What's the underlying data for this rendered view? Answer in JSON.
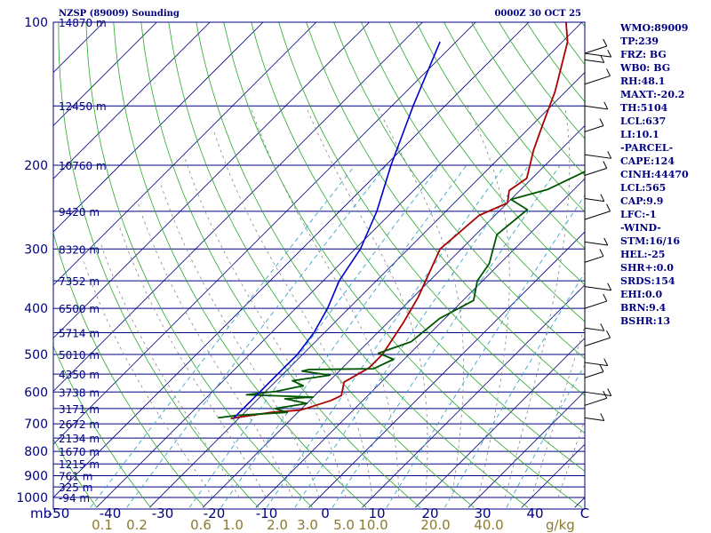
{
  "header": {
    "station": "NZSP (89009) Sounding",
    "time": "0000Z 30 OCT 25"
  },
  "indices": [
    "WMO:89009",
    "TP:239",
    "FRZ: BG",
    "WB0: BG",
    "RH:48.1",
    "MAXT:-20.2",
    "TH:5104",
    "LCL:637",
    "LI:10.1",
    "-PARCEL-",
    "CAPE:124",
    "CINH:44470",
    "LCL:565",
    "CAP:9.9",
    "LFC:-1",
    "-WIND-",
    "STM:16/16",
    "HEL:-25",
    "SHR+:0.0",
    "SRDS:154",
    "EHI:0.0",
    "BRN:9.4",
    "BSHR:13"
  ],
  "colors": {
    "isobar": "#000080",
    "isotherm": "#000080",
    "dry_adiabat": "#2aa82a",
    "moist_adiabat": "#888888",
    "mixing_ratio": "#3aa6c8",
    "temperature": "#aa0000",
    "dewpoint": "#005500",
    "parcel": "#0000cc",
    "wind": "#000000",
    "mixing_label": "#8a7a30"
  },
  "chart_data": {
    "type": "line",
    "title": "NZSP (89009) Sounding",
    "xlabel": "",
    "ylabel": "mb",
    "xlim": [
      -50,
      50
    ],
    "ylim": [
      1000,
      100
    ],
    "y_log": true,
    "temperature_ticks": [
      "-50",
      "-40",
      "-30",
      "-20",
      "-10",
      "0",
      "10",
      "20",
      "30",
      "40",
      "C"
    ],
    "y_axis_unit": "mb",
    "pressure_labels": [
      {
        "p": 100,
        "label": "100"
      },
      {
        "p": 200,
        "label": "200"
      },
      {
        "p": 300,
        "label": "300"
      },
      {
        "p": 400,
        "label": "400"
      },
      {
        "p": 500,
        "label": "500"
      },
      {
        "p": 600,
        "label": "600"
      },
      {
        "p": 700,
        "label": "700"
      },
      {
        "p": 800,
        "label": "800"
      },
      {
        "p": 900,
        "label": "900"
      },
      {
        "p": 1000,
        "label": "1000"
      }
    ],
    "height_labels": [
      {
        "p": 100,
        "label": "14870 m"
      },
      {
        "p": 150,
        "label": "12450 m"
      },
      {
        "p": 200,
        "label": "10760 m"
      },
      {
        "p": 250,
        "label": "9420 m"
      },
      {
        "p": 300,
        "label": "8320 m"
      },
      {
        "p": 350,
        "label": "7352 m"
      },
      {
        "p": 400,
        "label": "6500 m"
      },
      {
        "p": 450,
        "label": "5714 m"
      },
      {
        "p": 500,
        "label": "5010 m"
      },
      {
        "p": 550,
        "label": "4350 m"
      },
      {
        "p": 600,
        "label": "3738 m"
      },
      {
        "p": 650,
        "label": "3171 m"
      },
      {
        "p": 700,
        "label": "2672 m"
      },
      {
        "p": 750,
        "label": "2134 m"
      },
      {
        "p": 800,
        "label": "1670 m"
      },
      {
        "p": 850,
        "label": "1215 m"
      },
      {
        "p": 900,
        "label": "761 m"
      },
      {
        "p": 950,
        "label": "325 m"
      },
      {
        "p": 1000,
        "label": "-94 m"
      }
    ],
    "isobars": [
      100,
      150,
      200,
      250,
      300,
      350,
      400,
      450,
      500,
      550,
      600,
      650,
      700,
      750,
      800,
      850,
      900,
      950,
      1000
    ],
    "mixing_ratio_labels": [
      "0.1",
      "0.2",
      "0.6",
      "1.0",
      "2.0",
      "3.0",
      "5.0",
      "10.0",
      "20.0",
      "40.0"
    ],
    "mixing_ratio_unit": "g/kg",
    "series": [
      {
        "key": "temperature",
        "points": [
          [
            -31.5,
            682
          ],
          [
            -25,
            662
          ],
          [
            -20,
            655
          ],
          [
            -19,
            648
          ],
          [
            -16,
            625
          ],
          [
            -15,
            610
          ],
          [
            -17,
            572
          ],
          [
            -15,
            534
          ],
          [
            -15,
            500
          ],
          [
            -17,
            430
          ],
          [
            -19,
            380
          ],
          [
            -24,
            300
          ],
          [
            -23,
            255
          ],
          [
            -20,
            240
          ],
          [
            -22,
            226
          ],
          [
            -21,
            213
          ],
          [
            -25,
            186
          ],
          [
            -28,
            165
          ],
          [
            -32,
            140
          ],
          [
            -39,
            110
          ],
          [
            -43,
            100
          ]
        ]
      },
      {
        "key": "dewpoint",
        "points": [
          [
            -34,
            680
          ],
          [
            -31,
            672
          ],
          [
            -22,
            662
          ],
          [
            -25,
            650
          ],
          [
            -20,
            634
          ],
          [
            -25,
            620
          ],
          [
            -20,
            615
          ],
          [
            -33,
            608
          ],
          [
            -28,
            598
          ],
          [
            -24,
            582
          ],
          [
            -27,
            568
          ],
          [
            -21,
            553
          ],
          [
            -27,
            542
          ],
          [
            -26,
            538
          ],
          [
            -14,
            536
          ],
          [
            -12,
            512
          ],
          [
            -16,
            497
          ],
          [
            -12,
            470
          ],
          [
            -11,
            420
          ],
          [
            -8,
            385
          ],
          [
            -11,
            350
          ],
          [
            -12,
            322
          ],
          [
            -16,
            280
          ],
          [
            -15,
            248
          ],
          [
            -20,
            236
          ],
          [
            -15,
            225
          ],
          [
            -7,
            186
          ],
          [
            -3,
            150
          ],
          [
            4,
            100
          ]
        ]
      },
      {
        "key": "parcel",
        "points": [
          [
            -31,
            682
          ],
          [
            -31,
            650
          ],
          [
            -31,
            600
          ],
          [
            -31,
            550
          ],
          [
            -31,
            500
          ],
          [
            -32,
            450
          ],
          [
            -34,
            400
          ],
          [
            -37,
            350
          ],
          [
            -39,
            300
          ],
          [
            -43,
            250
          ],
          [
            -49,
            200
          ],
          [
            -56,
            150
          ],
          [
            -63,
            110
          ]
        ]
      }
    ],
    "wind_levels": [
      680,
      640,
      600,
      560,
      520,
      480,
      440,
      400,
      360,
      320,
      290,
      260,
      235,
      210,
      190,
      170,
      150,
      135,
      120,
      110,
      100
    ]
  }
}
